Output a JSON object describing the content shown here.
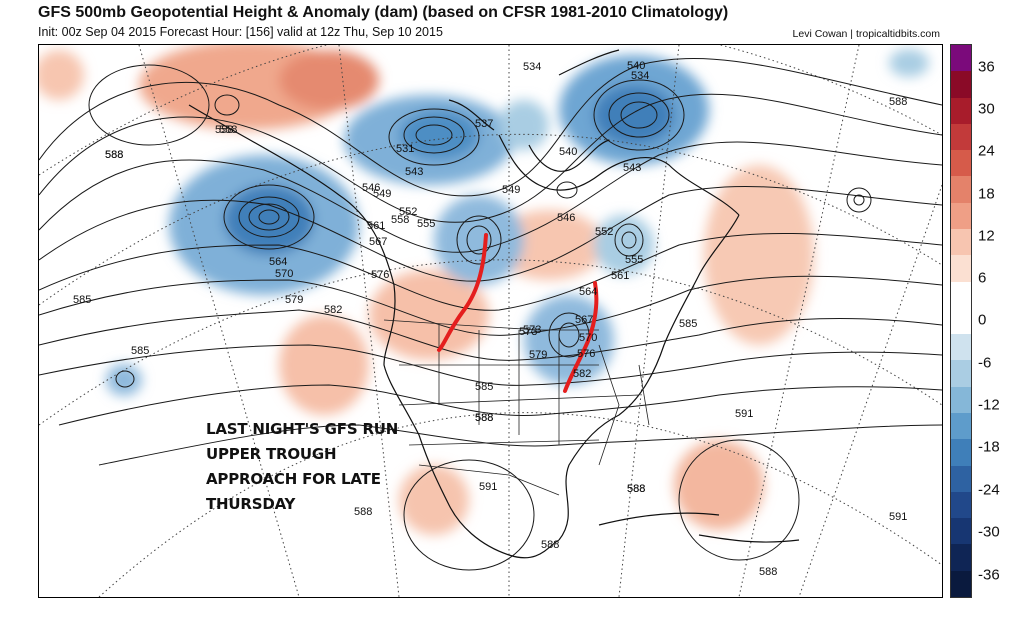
{
  "header": {
    "title": "GFS 500mb Geopotential Height & Anomaly (dam) (based on CFSR 1981-2010 Climatology)",
    "subtitle": "Init: 00z Sep 04 2015   Forecast Hour: [156]   valid at 12z Thu, Sep 10 2015",
    "credit": "Levi Cowan | tropicaltidbits.com"
  },
  "annotation": {
    "lines": [
      "LAST NIGHT'S GFS RUN",
      "UPPER TROUGH",
      "APPROACH FOR LATE",
      "THURSDAY"
    ]
  },
  "contour_labels": [
    "540",
    "534",
    "534",
    "537",
    "540",
    "543",
    "531",
    "543",
    "546",
    "549",
    "549",
    "546",
    "552",
    "555",
    "558",
    "558",
    "561",
    "564",
    "567",
    "570",
    "573",
    "576",
    "579",
    "582",
    "585",
    "588",
    "591",
    "552",
    "555",
    "561",
    "564",
    "567",
    "570",
    "573",
    "576",
    "579",
    "582",
    "585",
    "588",
    "591",
    "558",
    "588",
    "585",
    "588",
    "588",
    "591",
    "588",
    "588",
    "588",
    "588",
    "585",
    "588"
  ],
  "colorbar": {
    "ticks": [
      "36",
      "30",
      "24",
      "18",
      "12",
      "6",
      "0",
      "-6",
      "-12",
      "-18",
      "-24",
      "-30",
      "-36"
    ],
    "colors": [
      "#7b0a7b",
      "#8a0a27",
      "#a81c2b",
      "#c23a3a",
      "#d65b4a",
      "#e4826a",
      "#ef9f86",
      "#f7c5b0",
      "#fbe0d2",
      "#ffffff",
      "#ffffff",
      "#cfe2ee",
      "#aacde3",
      "#85b7d8",
      "#5e9ccb",
      "#3f7fb9",
      "#2e62a2",
      "#21488a",
      "#173672",
      "#0f2555",
      "#0a1a3e"
    ]
  },
  "colors": {
    "positive_anomaly": "#f3b39a",
    "negative_anomaly": "#6ea6d3",
    "contour": "#1a1a1a",
    "trough_marker": "#e41e1e"
  }
}
